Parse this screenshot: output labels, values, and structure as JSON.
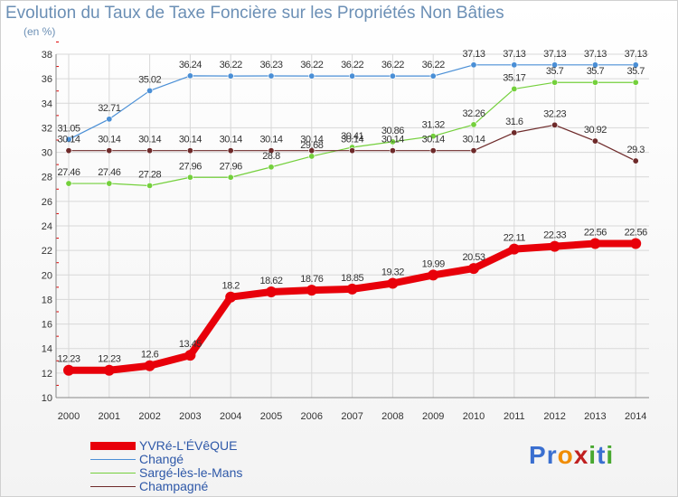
{
  "title": "Evolution du Taux de Taxe Foncière sur les Propriétés Non Bâties",
  "subtitle": "(en %)",
  "logo": {
    "text": "Proxiti",
    "letters": [
      "P",
      "r",
      "o",
      "x",
      "i",
      "t",
      "i"
    ],
    "colors": [
      "#3a6fd0",
      "#3a6fd0",
      "#f08c00",
      "#c02020",
      "#48a830",
      "#3a6fd0",
      "#48a830"
    ]
  },
  "chart_data": {
    "type": "line",
    "title": "Evolution du Taux de Taxe Foncière sur les Propriétés Non Bâties",
    "ylabel": "(en %)",
    "xlabel": "",
    "ylim": [
      10,
      38
    ],
    "ytick_step": 2,
    "grid": true,
    "legend_position": "bottom-left",
    "x": [
      "2000",
      "2001",
      "2002",
      "2003",
      "2004",
      "2005",
      "2006",
      "2007",
      "2008",
      "2009",
      "2010",
      "2011",
      "2012",
      "2013",
      "2014"
    ],
    "series": [
      {
        "name": "YVRé-L'ÉVêQUE",
        "color": "#e8000a",
        "values": [
          12.23,
          12.23,
          12.6,
          13.45,
          18.2,
          18.62,
          18.76,
          18.85,
          19.32,
          19.99,
          20.53,
          22.11,
          22.33,
          22.56,
          22.56
        ],
        "labels": [
          "12.23",
          "12.23",
          "12.6",
          "13.45",
          "18.2",
          "18.62",
          "18.76",
          "18.85",
          "19.32",
          "19.99",
          "20.53",
          "22.11",
          "22.33",
          "22.56",
          "22.56"
        ]
      },
      {
        "name": "Changé",
        "color": "#4a8fd6",
        "values": [
          31.05,
          32.71,
          35.02,
          36.24,
          36.22,
          36.23,
          36.22,
          36.22,
          36.22,
          36.22,
          37.13,
          37.13,
          37.13,
          37.13,
          37.13
        ],
        "labels": [
          "31.05",
          "32.71",
          "35.02",
          "36.24",
          "36.22",
          "36.23",
          "36.22",
          "36.22",
          "36.22",
          "36.22",
          "37.13",
          "37.13",
          "37.13",
          "37.13",
          "37.13"
        ]
      },
      {
        "name": "Sargé-lès-le-Mans",
        "color": "#74d03c",
        "values": [
          27.46,
          27.46,
          27.28,
          27.96,
          27.96,
          28.8,
          29.68,
          30.41,
          30.86,
          31.32,
          32.26,
          35.17,
          35.7,
          35.7,
          35.7
        ],
        "labels": [
          "27.46",
          "27.46",
          "27.28",
          "27.96",
          "27.96",
          "28.8",
          "29.68",
          "30.41",
          "30.86",
          "31.32",
          "32.26",
          "35.17",
          "35.7",
          "35.7",
          "35.7"
        ]
      },
      {
        "name": "Champagné",
        "color": "#6e2a2a",
        "values": [
          30.14,
          30.14,
          30.14,
          30.14,
          30.14,
          30.14,
          30.14,
          30.14,
          30.14,
          30.14,
          30.14,
          31.6,
          32.23,
          30.92,
          29.3
        ],
        "labels": [
          "30.14",
          "30.14",
          "30.14",
          "30.14",
          "30.14",
          "30.14",
          "30.14",
          "30.14",
          "30.14",
          "30.14",
          "30.14",
          "31.6",
          "32.23",
          "30.92",
          "29.3"
        ]
      }
    ]
  }
}
